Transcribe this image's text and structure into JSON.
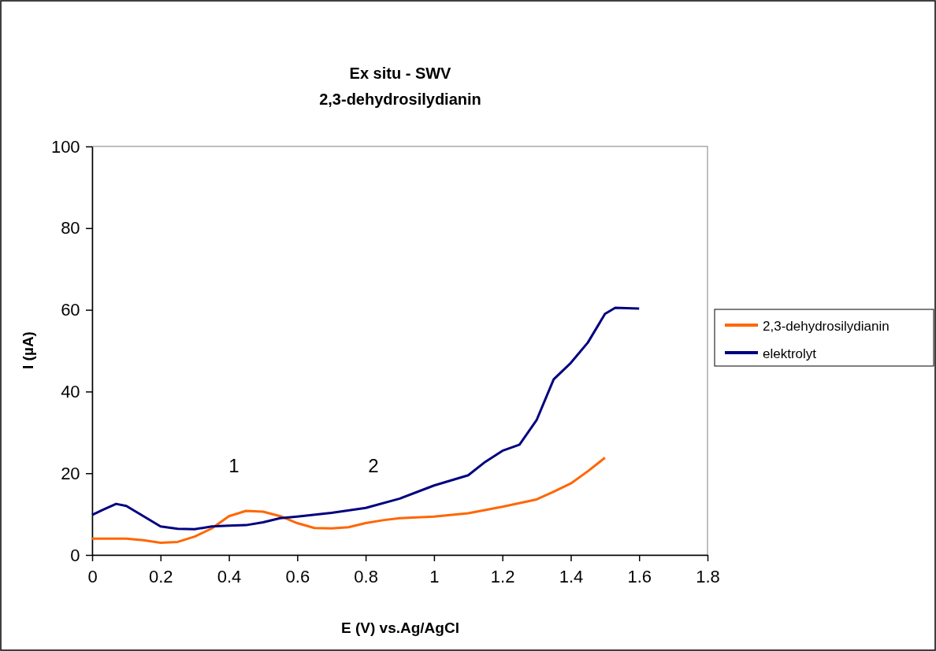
{
  "chart_data": {
    "type": "line",
    "title": "Ex situ - SWV",
    "subtitle": "2,3-dehydrosilydianin",
    "xlabel": "E (V) vs.Ag/AgCl",
    "ylabel": "I (µA)",
    "xlim": [
      0,
      1.8
    ],
    "xticks": [
      0,
      0.2,
      0.4,
      0.6,
      0.8,
      1,
      1.2,
      1.4,
      1.6,
      1.8
    ],
    "ylim": [
      0,
      100
    ],
    "yticks": [
      0,
      20,
      40,
      60,
      80,
      100
    ],
    "grid": false,
    "legend": "right",
    "marker": "none",
    "line_style": "solid",
    "annotations": [
      "1",
      "2"
    ],
    "series": [
      {
        "name": "2,3-dehydrosilydianin",
        "color": "#ff6600",
        "x": [
          0,
          0.1,
          0.15,
          0.2,
          0.25,
          0.3,
          0.35,
          0.4,
          0.45,
          0.5,
          0.55,
          0.6,
          0.65,
          0.7,
          0.75,
          0.8,
          0.85,
          0.9,
          1.0,
          1.1,
          1.2,
          1.3,
          1.35,
          1.4,
          1.45,
          1.5
        ],
        "values": [
          4,
          4,
          3.6,
          3,
          3.2,
          4.5,
          6.5,
          9.5,
          10.8,
          10.6,
          9.5,
          7.8,
          6.6,
          6.5,
          6.8,
          7.8,
          8.5,
          9,
          9.4,
          10.2,
          11.8,
          13.6,
          15.5,
          17.5,
          20.5,
          23.8
        ]
      },
      {
        "name": "elektrolyt",
        "color": "#000080",
        "x": [
          0,
          0.03,
          0.07,
          0.1,
          0.15,
          0.2,
          0.25,
          0.3,
          0.35,
          0.4,
          0.45,
          0.5,
          0.55,
          0.6,
          0.7,
          0.8,
          0.9,
          1.0,
          1.1,
          1.15,
          1.2,
          1.25,
          1.3,
          1.35,
          1.4,
          1.45,
          1.5,
          1.53,
          1.6
        ],
        "values": [
          9.8,
          11,
          12.5,
          12,
          9.5,
          7,
          6.4,
          6.3,
          7,
          7.2,
          7.3,
          8,
          9,
          9.4,
          10.3,
          11.5,
          13.8,
          17,
          19.5,
          22.8,
          25.5,
          27,
          33,
          43,
          47,
          52,
          59,
          60.5,
          60.3
        ]
      }
    ]
  }
}
